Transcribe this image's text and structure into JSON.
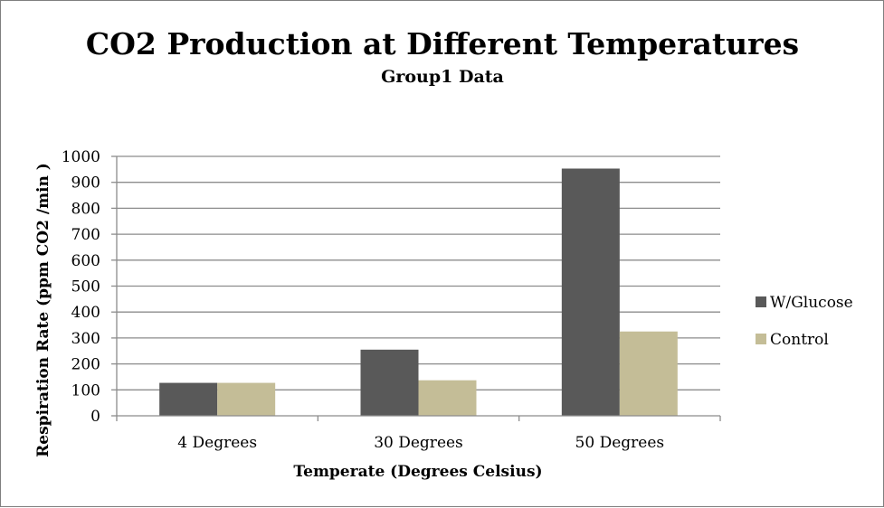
{
  "chart_data": {
    "type": "bar",
    "title": "CO2 Production at Different Temperatures",
    "subtitle": "Group1 Data",
    "xlabel": "Temperate (Degrees Celsius)",
    "ylabel": "Respiration Rate (ppm CO2 /min )",
    "categories": [
      "4 Degrees",
      "30 Degrees",
      "50 Degrees"
    ],
    "ylim": [
      0,
      1000
    ],
    "yticks": [
      0,
      100,
      200,
      300,
      400,
      500,
      600,
      700,
      800,
      900,
      1000
    ],
    "grid": true,
    "legend_position": "right",
    "series": [
      {
        "name": "W/Glucose",
        "color": "#595959",
        "values": [
          127,
          255,
          953
        ]
      },
      {
        "name": "Control",
        "color": "#c4bd97",
        "values": [
          127,
          137,
          325
        ]
      }
    ]
  }
}
